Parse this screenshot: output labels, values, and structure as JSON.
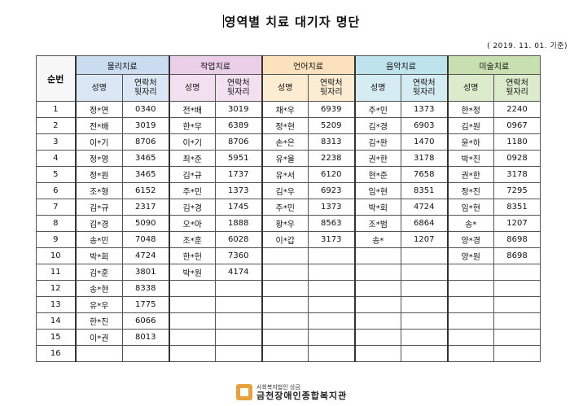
{
  "title": "영역별 치료 대기자 명단",
  "date": "( 2019. 11. 01. 기준)",
  "seq_header": "순번",
  "sub_headers": {
    "name": "성명",
    "contact": "연락처\n뒷자리"
  },
  "categories": [
    {
      "label": "물리치료",
      "color": "#c9dcf0"
    },
    {
      "label": "작업치료",
      "color": "#ebcfe8"
    },
    {
      "label": "언어치료",
      "color": "#fbe2bd"
    },
    {
      "label": "음악치료",
      "color": "#bde3ec"
    },
    {
      "label": "미술치료",
      "color": "#c8e0b0"
    }
  ],
  "rows": [
    {
      "seq": "1",
      "cells": [
        [
          "정*연",
          "0340"
        ],
        [
          "전*배",
          "3019"
        ],
        [
          "채*우",
          "6939"
        ],
        [
          "주*민",
          "1373"
        ],
        [
          "한*정",
          "2240"
        ]
      ]
    },
    {
      "seq": "2",
      "cells": [
        [
          "전*배",
          "3019"
        ],
        [
          "한*무",
          "6389"
        ],
        [
          "정*현",
          "5209"
        ],
        [
          "김*경",
          "6903"
        ],
        [
          "김*원",
          "0967"
        ]
      ]
    },
    {
      "seq": "3",
      "cells": [
        [
          "이*기",
          "8706"
        ],
        [
          "이*기",
          "8706"
        ],
        [
          "손*은",
          "8313"
        ],
        [
          "김*완",
          "1470"
        ],
        [
          "윤*하",
          "1180"
        ]
      ]
    },
    {
      "seq": "4",
      "cells": [
        [
          "정*영",
          "3465"
        ],
        [
          "최*준",
          "5951"
        ],
        [
          "유*율",
          "2238"
        ],
        [
          "권*한",
          "3178"
        ],
        [
          "박*진",
          "0928"
        ]
      ]
    },
    {
      "seq": "5",
      "cells": [
        [
          "정*원",
          "3465"
        ],
        [
          "김*규",
          "1737"
        ],
        [
          "유*서",
          "6120"
        ],
        [
          "현*준",
          "7658"
        ],
        [
          "권*한",
          "3178"
        ]
      ]
    },
    {
      "seq": "6",
      "cells": [
        [
          "조*형",
          "6152"
        ],
        [
          "주*민",
          "1373"
        ],
        [
          "김*우",
          "6923"
        ],
        [
          "임*현",
          "8351"
        ],
        [
          "정*진",
          "7295"
        ]
      ]
    },
    {
      "seq": "7",
      "cells": [
        [
          "김*규",
          "2317"
        ],
        [
          "김*경",
          "1745"
        ],
        [
          "주*민",
          "1373"
        ],
        [
          "박*회",
          "4724"
        ],
        [
          "임*현",
          "8351"
        ]
      ]
    },
    {
      "seq": "8",
      "cells": [
        [
          "김*경",
          "5090"
        ],
        [
          "오*아",
          "1888"
        ],
        [
          "황*우",
          "8563"
        ],
        [
          "조*범",
          "6864"
        ],
        [
          "송*",
          "1207"
        ]
      ]
    },
    {
      "seq": "9",
      "cells": [
        [
          "송*민",
          "7048"
        ],
        [
          "조*훈",
          "6028"
        ],
        [
          "이*갑",
          "3173"
        ],
        [
          "송*",
          "1207"
        ],
        [
          "양*경",
          "8698"
        ]
      ]
    },
    {
      "seq": "10",
      "cells": [
        [
          "박*회",
          "4724"
        ],
        [
          "한*헌",
          "7360"
        ],
        [
          "",
          ""
        ],
        [
          "",
          ""
        ],
        [
          "양*원",
          "8698"
        ]
      ]
    },
    {
      "seq": "11",
      "cells": [
        [
          "김*훈",
          "3801"
        ],
        [
          "박*원",
          "4174"
        ],
        [
          "",
          ""
        ],
        [
          "",
          ""
        ],
        [
          "",
          ""
        ]
      ]
    },
    {
      "seq": "12",
      "cells": [
        [
          "송*현",
          "8338"
        ],
        [
          "",
          ""
        ],
        [
          "",
          ""
        ],
        [
          "",
          ""
        ],
        [
          "",
          ""
        ]
      ]
    },
    {
      "seq": "13",
      "cells": [
        [
          "유*우",
          "1775"
        ],
        [
          "",
          ""
        ],
        [
          "",
          ""
        ],
        [
          "",
          ""
        ],
        [
          "",
          ""
        ]
      ]
    },
    {
      "seq": "14",
      "cells": [
        [
          "한*진",
          "6066"
        ],
        [
          "",
          ""
        ],
        [
          "",
          ""
        ],
        [
          "",
          ""
        ],
        [
          "",
          ""
        ]
      ]
    },
    {
      "seq": "15",
      "cells": [
        [
          "이*권",
          "8013"
        ],
        [
          "",
          ""
        ],
        [
          "",
          ""
        ],
        [
          "",
          ""
        ],
        [
          "",
          ""
        ]
      ]
    },
    {
      "seq": "16",
      "cells": [
        [
          "",
          ""
        ],
        [
          "",
          ""
        ],
        [
          "",
          ""
        ],
        [
          "",
          ""
        ],
        [
          "",
          ""
        ]
      ]
    }
  ],
  "footer": {
    "small": "사회복지법인 상금",
    "name": "금천장애인종합복지관",
    "logo_icon": "org-logo-icon"
  }
}
